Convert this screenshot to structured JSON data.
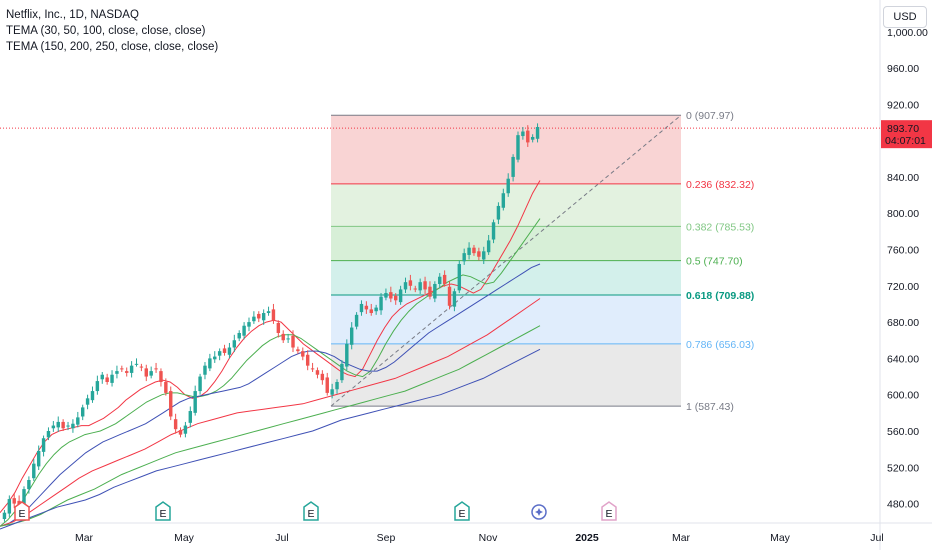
{
  "legend": {
    "title": "Netflix, Inc., 1D, NASDAQ",
    "indicator1": "TEMA (30, 50, 100, close, close, close)",
    "indicator2": "TEMA (150, 200, 250, close, close, close)"
  },
  "currency_button": "USD",
  "price_tag": {
    "price": "893.70",
    "countdown": "04:07:01",
    "value": 893.7
  },
  "colors": {
    "up": "#26a69a",
    "down": "#ef5350",
    "tema_red": "#f23645",
    "tema_green": "#4caf50",
    "tema_blue": "#3f51b5",
    "fib_0": "#787b86",
    "fib_236": "#f23645",
    "fib_382": "#81c784",
    "fib_5": "#4caf50",
    "fib_618": "#089981",
    "fib_786": "#64b5f6",
    "fib_1": "#787b86"
  },
  "earnings_markers": [
    {
      "label": "E",
      "kind": "past-down",
      "date": "Jan 2024"
    },
    {
      "label": "E",
      "kind": "past-up",
      "date": "Apr 2024"
    },
    {
      "label": "E",
      "kind": "past-up",
      "date": "Jul 2024"
    },
    {
      "label": "E",
      "kind": "past-up",
      "date": "Oct 2024"
    },
    {
      "label": "",
      "kind": "dividend-icon",
      "date": "Dec 2024"
    },
    {
      "label": "E",
      "kind": "future",
      "date": "Jan 2025"
    }
  ],
  "chart_data": {
    "type": "candlestick",
    "title": "Netflix, Inc., 1D, NASDAQ",
    "ylim": [
      455,
      1020
    ],
    "y_ticks": [
      480,
      520,
      560,
      600,
      640,
      680,
      720,
      760,
      800,
      840,
      880,
      920,
      960
    ],
    "y_tick_labels": [
      "480.00",
      "520.00",
      "560.00",
      "600.00",
      "640.00",
      "680.00",
      "720.00",
      "760.00",
      "800.00",
      "840.00",
      "880.00",
      "920.00",
      "960.00"
    ],
    "top_partial_label": "1,000.00",
    "x_tick_labels": [
      "Mar",
      "May",
      "Jul",
      "Sep",
      "Nov",
      "2025",
      "Mar",
      "May",
      "Jul"
    ],
    "x_bold": [
      "2025"
    ],
    "fibonacci": {
      "start_date": "Aug 2024",
      "end_date": "Mar 2025",
      "levels": [
        {
          "ratio": "0",
          "price": 907.97,
          "label": "0 (907.97)"
        },
        {
          "ratio": "0.236",
          "price": 832.32,
          "label": "0.236 (832.32)"
        },
        {
          "ratio": "0.382",
          "price": 785.53,
          "label": "0.382 (785.53)"
        },
        {
          "ratio": "0.5",
          "price": 747.7,
          "label": "0.5 (747.70)"
        },
        {
          "ratio": "0.618",
          "price": 709.88,
          "label": "0.618 (709.88)"
        },
        {
          "ratio": "0.786",
          "price": 656.03,
          "label": "0.786 (656.03)"
        },
        {
          "ratio": "1",
          "price": 587.43,
          "label": "1 (587.43)"
        }
      ]
    },
    "close_series_approx": [
      470,
      485,
      480,
      478,
      496,
      506,
      524,
      538,
      552,
      560,
      566,
      570,
      563,
      566,
      568,
      575,
      586,
      596,
      604,
      615,
      622,
      614,
      622,
      626,
      628,
      624,
      632,
      634,
      630,
      620,
      626,
      628,
      614,
      602,
      576,
      562,
      556,
      566,
      582,
      604,
      620,
      632,
      640,
      642,
      648,
      646,
      652,
      660,
      668,
      676,
      680,
      686,
      684,
      690,
      692,
      682,
      668,
      660,
      662,
      652,
      648,
      642,
      632,
      628,
      622,
      616,
      602,
      606,
      614,
      634,
      656,
      674,
      688,
      700,
      694,
      690,
      696,
      708,
      712,
      706,
      704,
      716,
      724,
      720,
      716,
      724,
      716,
      708,
      722,
      730,
      722,
      698,
      714,
      744,
      756,
      762,
      756,
      752,
      758,
      770,
      790,
      808,
      822,
      838,
      862,
      886,
      890,
      878,
      884,
      895
    ],
    "series": [
      {
        "name": "TEMA 30",
        "color": "#f23645",
        "values_approx": [
          470,
          480,
          492,
          508,
          522,
          536,
          548,
          556,
          560,
          562,
          564,
          566,
          566,
          570,
          574,
          580,
          586,
          594,
          600,
          606,
          610,
          614,
          616,
          614,
          608,
          600,
          596,
          598,
          604,
          614,
          626,
          640,
          652,
          662,
          670,
          676,
          680,
          682,
          680,
          672,
          664,
          656,
          650,
          644,
          638,
          632,
          626,
          622,
          620,
          628,
          644,
          660,
          674,
          686,
          694,
          700,
          704,
          708,
          712,
          716,
          720,
          722,
          720,
          716,
          712,
          716,
          728,
          742,
          756,
          770,
          786,
          804,
          822,
          836
        ]
      },
      {
        "name": "TEMA 50",
        "color": "#4caf50",
        "values_approx": [
          455,
          462,
          472,
          484,
          498,
          512,
          524,
          534,
          542,
          548,
          552,
          556,
          558,
          560,
          564,
          568,
          574,
          580,
          586,
          592,
          596,
          600,
          602,
          602,
          600,
          598,
          598,
          600,
          604,
          610,
          618,
          628,
          638,
          646,
          654,
          660,
          664,
          666,
          666,
          662,
          656,
          650,
          644,
          638,
          632,
          626,
          622,
          620,
          626,
          640,
          656,
          670,
          682,
          692,
          700,
          706,
          712,
          718,
          724,
          728,
          732,
          730,
          726,
          722,
          724,
          734,
          746,
          758,
          770,
          782,
          794
        ]
      },
      {
        "name": "TEMA 100",
        "color": "#3f51b5",
        "values_approx": [
          455,
          458,
          464,
          472,
          482,
          492,
          502,
          512,
          520,
          528,
          536,
          542,
          548,
          552,
          556,
          560,
          564,
          568,
          574,
          580,
          586,
          592,
          596,
          598,
          600,
          602,
          604,
          606,
          608,
          612,
          618,
          624,
          630,
          636,
          642,
          646,
          648,
          648,
          646,
          642,
          636,
          632,
          628,
          626,
          626,
          630,
          636,
          644,
          652,
          660,
          668,
          674,
          680,
          686,
          692,
          698,
          704,
          710,
          716,
          722,
          728,
          734,
          740,
          744
        ]
      },
      {
        "name": "TEMA 150",
        "color": "#f23645",
        "values_approx": [
          455,
          460,
          468,
          478,
          488,
          498,
          508,
          516,
          522,
          528,
          534,
          540,
          548,
          556,
          562,
          568,
          572,
          576,
          580,
          582,
          584,
          586,
          588,
          590,
          594,
          598,
          602,
          606,
          610,
          614,
          618,
          624,
          630,
          636,
          642,
          650,
          658,
          666,
          676,
          686,
          696,
          706
        ]
      },
      {
        "name": "TEMA 200",
        "color": "#4caf50",
        "values_approx": [
          455,
          458,
          462,
          468,
          476,
          484,
          490,
          496,
          504,
          512,
          518,
          524,
          530,
          536,
          540,
          544,
          548,
          552,
          556,
          560,
          564,
          568,
          572,
          576,
          580,
          584,
          588,
          592,
          596,
          600,
          604,
          610,
          616,
          622,
          628,
          636,
          644,
          652,
          660,
          668,
          676
        ]
      },
      {
        "name": "TEMA 250",
        "color": "#3f51b5",
        "values_approx": [
          452,
          458,
          464,
          470,
          476,
          480,
          484,
          490,
          498,
          504,
          510,
          516,
          520,
          524,
          528,
          532,
          536,
          540,
          544,
          548,
          552,
          556,
          560,
          566,
          572,
          576,
          580,
          584,
          588,
          592,
          596,
          600,
          606,
          612,
          618,
          626,
          634,
          642,
          650
        ]
      }
    ]
  }
}
